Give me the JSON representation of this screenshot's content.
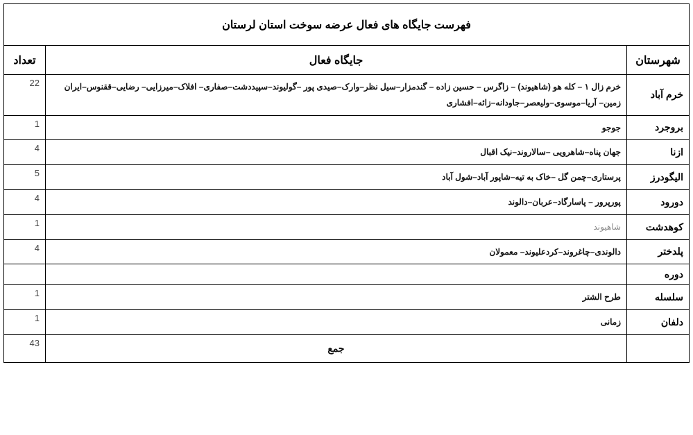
{
  "title": "فهرست جایگاه های فعال عرضه سوخت استان لرستان",
  "headers": {
    "city": "شهرستان",
    "station": "جایگاه فعال",
    "count": "تعداد"
  },
  "rows": [
    {
      "city": "خرم آباد",
      "stations": "خرم زال ۱ – کله هو (شاهیوند) – زاگرس – حسین زاده – گندمزار–سیل نظر–وارک–صیدی پور –گولیوند–سپیددشت–صفاری– افلاک–میرزایی– رضایی–ققنوس–ایران زمین– آریا–موسوی–ولیعصر–جاودانه–زائه–افشاری",
      "count": "22"
    },
    {
      "city": "بروجرد",
      "stations": "جوجو",
      "count": "1"
    },
    {
      "city": "ازنا",
      "stations": "جهان پناه–شاهرویی –سالاروند–نیک اقبال",
      "count": "4"
    },
    {
      "city": "الیگودرز",
      "stations": "پرستاری–چمن گل –خاک به تیه–شاپور آباد–شول آباد",
      "count": "5"
    },
    {
      "city": "دورود",
      "stations": "پورپرور – پاسارگاد–عربان–دالوند",
      "count": "4"
    },
    {
      "city": "کوهدشت",
      "stations": "شاهیوند",
      "count": "1",
      "muted": true
    },
    {
      "city": "پلدختر",
      "stations": "دالوندی–چاغروند–کردعلیوند– معمولان",
      "count": "4"
    },
    {
      "city": "دوره",
      "stations": "",
      "count": ""
    },
    {
      "city": "سلسله",
      "stations": "طرح الشتر",
      "count": "1"
    },
    {
      "city": "دلفان",
      "stations": "زمانی",
      "count": "1"
    }
  ],
  "sum": {
    "label": "جمع",
    "value": "43"
  }
}
